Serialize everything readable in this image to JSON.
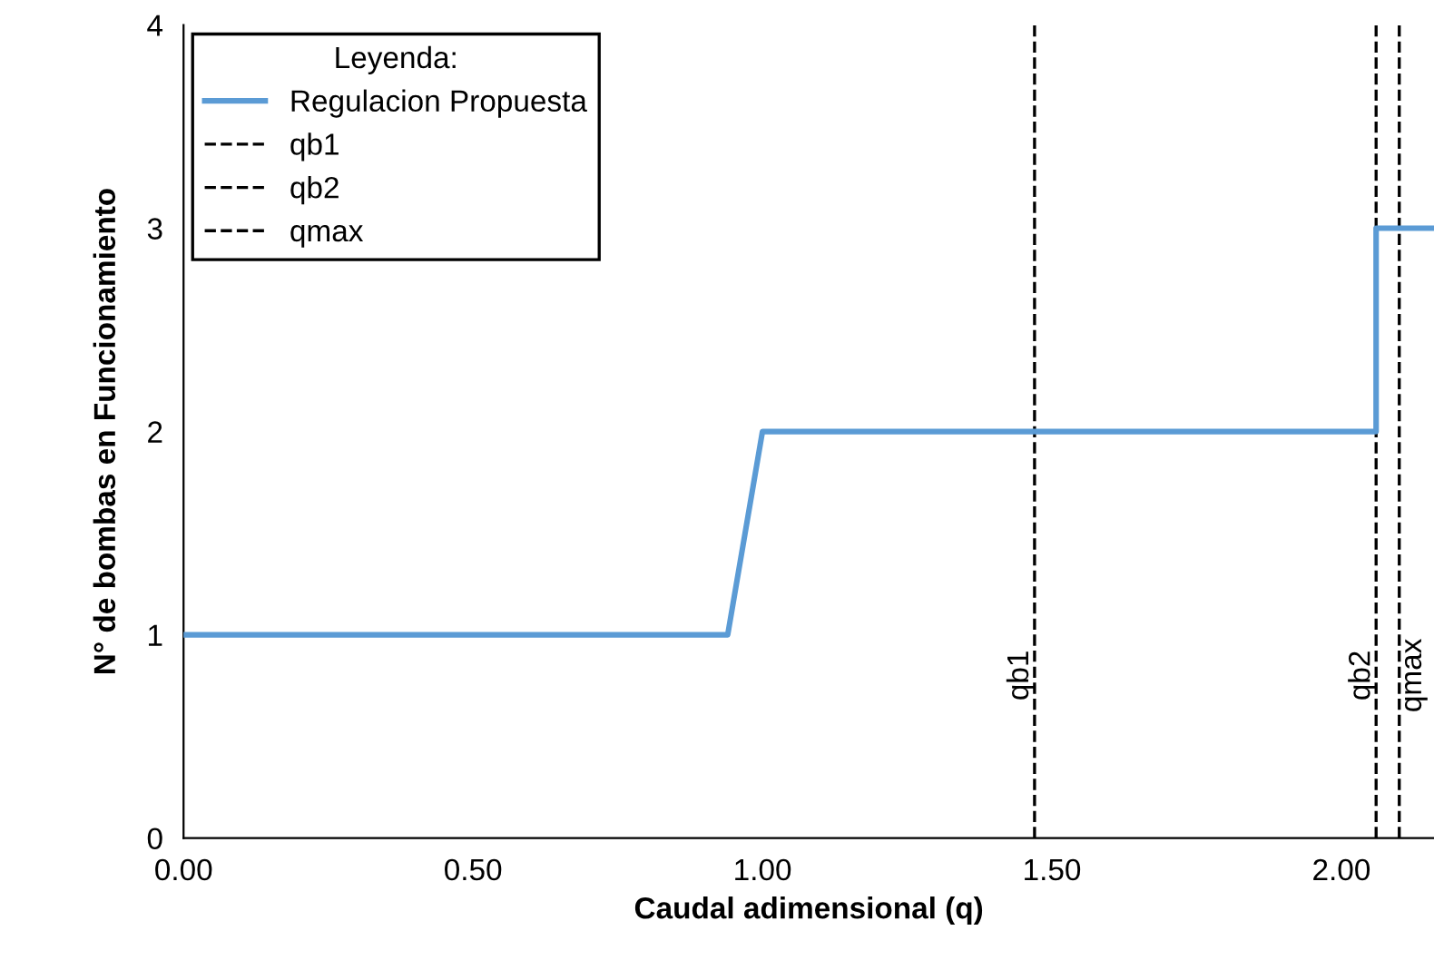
{
  "chart_data": {
    "type": "line",
    "xlabel": "Caudal adimensional (q)",
    "ylabel": "N° de bombas en Funcionamiento",
    "legend_title": "Leyenda:",
    "x": [
      0,
      0.94,
      1.0,
      2.06,
      2.06,
      2.16
    ],
    "series": [
      {
        "name": "Regulacion Propuesta",
        "color": "#5b9bd5",
        "values": [
          1,
          1,
          2,
          2,
          3,
          3
        ]
      }
    ],
    "ref_lines": [
      {
        "axis": "x",
        "value": 1.47,
        "label": "qb1",
        "color": "#000000",
        "line_style": "dashed"
      },
      {
        "axis": "x",
        "value": 2.06,
        "label": "qb2",
        "color": "#000000",
        "line_style": "dashed"
      },
      {
        "axis": "x",
        "value": 2.1,
        "label": "qmax",
        "color": "#000000",
        "line_style": "dashed"
      }
    ],
    "xlim": [
      0,
      2.16
    ],
    "xticks": [
      {
        "value": 0,
        "label": "0.00"
      },
      {
        "value": 0.5,
        "label": "0.50"
      },
      {
        "value": 1,
        "label": "1.00"
      },
      {
        "value": 1.5,
        "label": "1.50"
      },
      {
        "value": 2,
        "label": "2.00"
      }
    ],
    "ylim": [
      0,
      4
    ],
    "yticks": [
      0,
      1,
      2,
      3,
      4
    ],
    "grid": false,
    "legend": "top left",
    "marker": "none",
    "line_style": "solid"
  }
}
